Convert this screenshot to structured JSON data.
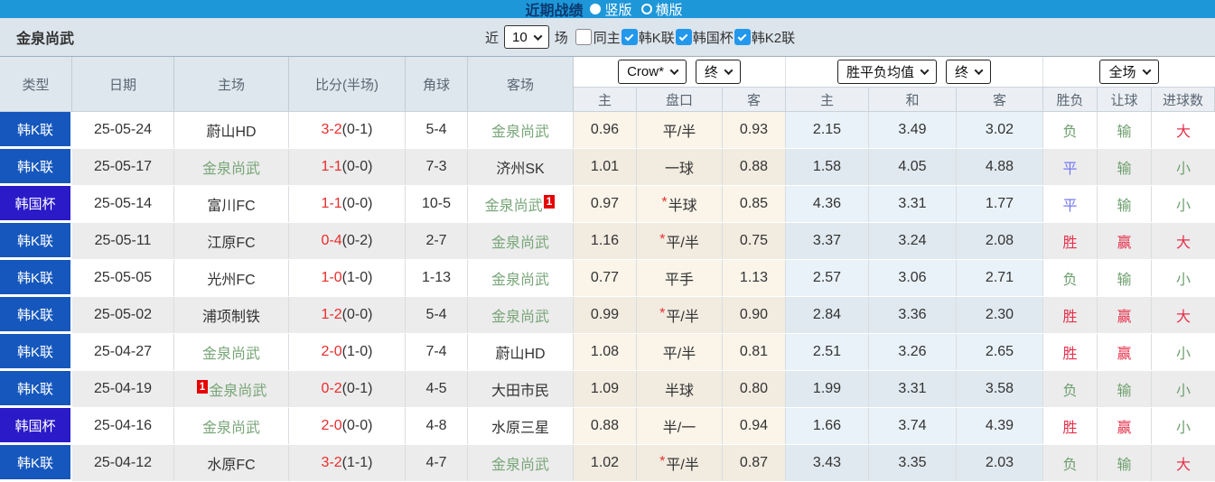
{
  "topbar": {
    "title": "近期战绩",
    "radios": [
      {
        "label": "竖版",
        "selected": true
      },
      {
        "label": "横版",
        "selected": false
      }
    ]
  },
  "filterbar": {
    "team": "金泉尚武",
    "near_label": "近",
    "matches_value": "10",
    "matches_label": "场",
    "checkboxes": [
      {
        "label": "同主",
        "checked": false
      },
      {
        "label": "韩K联",
        "checked": true
      },
      {
        "label": "韩国杯",
        "checked": true
      },
      {
        "label": "韩K2联",
        "checked": true
      }
    ]
  },
  "table": {
    "left_headers": [
      "类型",
      "日期",
      "主场",
      "比分(半场)",
      "角球",
      "客场"
    ],
    "dropdowns": {
      "odds_company": "Crow*",
      "odds_period": "终",
      "avg_label": "胜平负均值",
      "avg_period": "终",
      "scope": "全场"
    },
    "sub_headers": [
      "主",
      "盘口",
      "客",
      "主",
      "和",
      "客",
      "胜负",
      "让球",
      "进球数"
    ],
    "rows": [
      {
        "type": "韩K联",
        "cup": false,
        "date": "25-05-24",
        "home": "蔚山HD",
        "home_green": false,
        "home_badge": null,
        "score": "3-2",
        "half": "(0-1)",
        "corners": "5-4",
        "away": "金泉尚武",
        "away_green": true,
        "away_badge": null,
        "odds_home": "0.96",
        "handicap": "平/半",
        "handicap_star": false,
        "odds_away": "0.93",
        "avg_home": "2.15",
        "avg_draw": "3.49",
        "avg_away": "3.02",
        "wdl": {
          "text": "负",
          "color": "green"
        },
        "handicap_result": {
          "text": "输",
          "color": "green"
        },
        "goals_result": {
          "text": "大",
          "color": "red"
        }
      },
      {
        "type": "韩K联",
        "cup": false,
        "date": "25-05-17",
        "home": "金泉尚武",
        "home_green": true,
        "home_badge": null,
        "score": "1-1",
        "half": "(0-0)",
        "corners": "7-3",
        "away": "济州SK",
        "away_green": false,
        "away_badge": null,
        "odds_home": "1.01",
        "handicap": "一球",
        "handicap_star": false,
        "odds_away": "0.88",
        "avg_home": "1.58",
        "avg_draw": "4.05",
        "avg_away": "4.88",
        "wdl": {
          "text": "平",
          "color": "blue"
        },
        "handicap_result": {
          "text": "输",
          "color": "green"
        },
        "goals_result": {
          "text": "小",
          "color": "green"
        }
      },
      {
        "type": "韩国杯",
        "cup": true,
        "date": "25-05-14",
        "home": "富川FC",
        "home_green": false,
        "home_badge": null,
        "score": "1-1",
        "half": "(0-0)",
        "corners": "10-5",
        "away": "金泉尚武",
        "away_green": true,
        "away_badge": "1",
        "odds_home": "0.97",
        "handicap": "半球",
        "handicap_star": true,
        "odds_away": "0.85",
        "avg_home": "4.36",
        "avg_draw": "3.31",
        "avg_away": "1.77",
        "wdl": {
          "text": "平",
          "color": "blue"
        },
        "handicap_result": {
          "text": "输",
          "color": "green"
        },
        "goals_result": {
          "text": "小",
          "color": "green"
        }
      },
      {
        "type": "韩K联",
        "cup": false,
        "date": "25-05-11",
        "home": "江原FC",
        "home_green": false,
        "home_badge": null,
        "score": "0-4",
        "half": "(0-2)",
        "corners": "2-7",
        "away": "金泉尚武",
        "away_green": true,
        "away_badge": null,
        "odds_home": "1.16",
        "handicap": "平/半",
        "handicap_star": true,
        "odds_away": "0.75",
        "avg_home": "3.37",
        "avg_draw": "3.24",
        "avg_away": "2.08",
        "wdl": {
          "text": "胜",
          "color": "red"
        },
        "handicap_result": {
          "text": "赢",
          "color": "red"
        },
        "goals_result": {
          "text": "大",
          "color": "red"
        }
      },
      {
        "type": "韩K联",
        "cup": false,
        "date": "25-05-05",
        "home": "光州FC",
        "home_green": false,
        "home_badge": null,
        "score": "1-0",
        "half": "(1-0)",
        "corners": "1-13",
        "away": "金泉尚武",
        "away_green": true,
        "away_badge": null,
        "odds_home": "0.77",
        "handicap": "平手",
        "handicap_star": false,
        "odds_away": "1.13",
        "avg_home": "2.57",
        "avg_draw": "3.06",
        "avg_away": "2.71",
        "wdl": {
          "text": "负",
          "color": "green"
        },
        "handicap_result": {
          "text": "输",
          "color": "green"
        },
        "goals_result": {
          "text": "小",
          "color": "green"
        }
      },
      {
        "type": "韩K联",
        "cup": false,
        "date": "25-05-02",
        "home": "浦项制铁",
        "home_green": false,
        "home_badge": null,
        "score": "1-2",
        "half": "(0-0)",
        "corners": "5-4",
        "away": "金泉尚武",
        "away_green": true,
        "away_badge": null,
        "odds_home": "0.99",
        "handicap": "平/半",
        "handicap_star": true,
        "odds_away": "0.90",
        "avg_home": "2.84",
        "avg_draw": "3.36",
        "avg_away": "2.30",
        "wdl": {
          "text": "胜",
          "color": "red"
        },
        "handicap_result": {
          "text": "赢",
          "color": "red"
        },
        "goals_result": {
          "text": "大",
          "color": "red"
        }
      },
      {
        "type": "韩K联",
        "cup": false,
        "date": "25-04-27",
        "home": "金泉尚武",
        "home_green": true,
        "home_badge": null,
        "score": "2-0",
        "half": "(1-0)",
        "corners": "7-4",
        "away": "蔚山HD",
        "away_green": false,
        "away_badge": null,
        "odds_home": "1.08",
        "handicap": "平/半",
        "handicap_star": false,
        "odds_away": "0.81",
        "avg_home": "2.51",
        "avg_draw": "3.26",
        "avg_away": "2.65",
        "wdl": {
          "text": "胜",
          "color": "red"
        },
        "handicap_result": {
          "text": "赢",
          "color": "red"
        },
        "goals_result": {
          "text": "小",
          "color": "green"
        }
      },
      {
        "type": "韩K联",
        "cup": false,
        "date": "25-04-19",
        "home": "金泉尚武",
        "home_green": true,
        "home_badge": "1",
        "score": "0-2",
        "half": "(0-1)",
        "corners": "4-5",
        "away": "大田市民",
        "away_green": false,
        "away_badge": null,
        "odds_home": "1.09",
        "handicap": "半球",
        "handicap_star": false,
        "odds_away": "0.80",
        "avg_home": "1.99",
        "avg_draw": "3.31",
        "avg_away": "3.58",
        "wdl": {
          "text": "负",
          "color": "green"
        },
        "handicap_result": {
          "text": "输",
          "color": "green"
        },
        "goals_result": {
          "text": "小",
          "color": "green"
        }
      },
      {
        "type": "韩国杯",
        "cup": true,
        "date": "25-04-16",
        "home": "金泉尚武",
        "home_green": true,
        "home_badge": null,
        "score": "2-0",
        "half": "(0-0)",
        "corners": "4-8",
        "away": "水原三星",
        "away_green": false,
        "away_badge": null,
        "odds_home": "0.88",
        "handicap": "半/一",
        "handicap_star": false,
        "odds_away": "0.94",
        "avg_home": "1.66",
        "avg_draw": "3.74",
        "avg_away": "4.39",
        "wdl": {
          "text": "胜",
          "color": "red"
        },
        "handicap_result": {
          "text": "赢",
          "color": "red"
        },
        "goals_result": {
          "text": "小",
          "color": "green"
        }
      },
      {
        "type": "韩K联",
        "cup": false,
        "date": "25-04-12",
        "home": "水原FC",
        "home_green": false,
        "home_badge": null,
        "score": "3-2",
        "half": "(1-1)",
        "corners": "4-7",
        "away": "金泉尚武",
        "away_green": true,
        "away_badge": null,
        "odds_home": "1.02",
        "handicap": "平/半",
        "handicap_star": true,
        "odds_away": "0.87",
        "avg_home": "3.43",
        "avg_draw": "3.35",
        "avg_away": "2.03",
        "wdl": {
          "text": "负",
          "color": "green"
        },
        "handicap_result": {
          "text": "输",
          "color": "green"
        },
        "goals_result": {
          "text": "大",
          "color": "red"
        }
      }
    ]
  },
  "colors": {
    "topbar_bg": "#1e97d8",
    "title_text": "#0c3a70",
    "kleague_bg": "#1557bc",
    "cup_bg": "#2a1ac8",
    "team_highlight": "#78a578",
    "score_red": "#ea2c2c",
    "win_red": "#e5304b",
    "lose_green": "#6f9f6f",
    "draw_blue": "#7678f5",
    "odds_bg": "#faf4e9",
    "avg_bg": "#e9f2f8",
    "checkbox_blue": "#2298ed",
    "badge_red": "#e60000"
  }
}
